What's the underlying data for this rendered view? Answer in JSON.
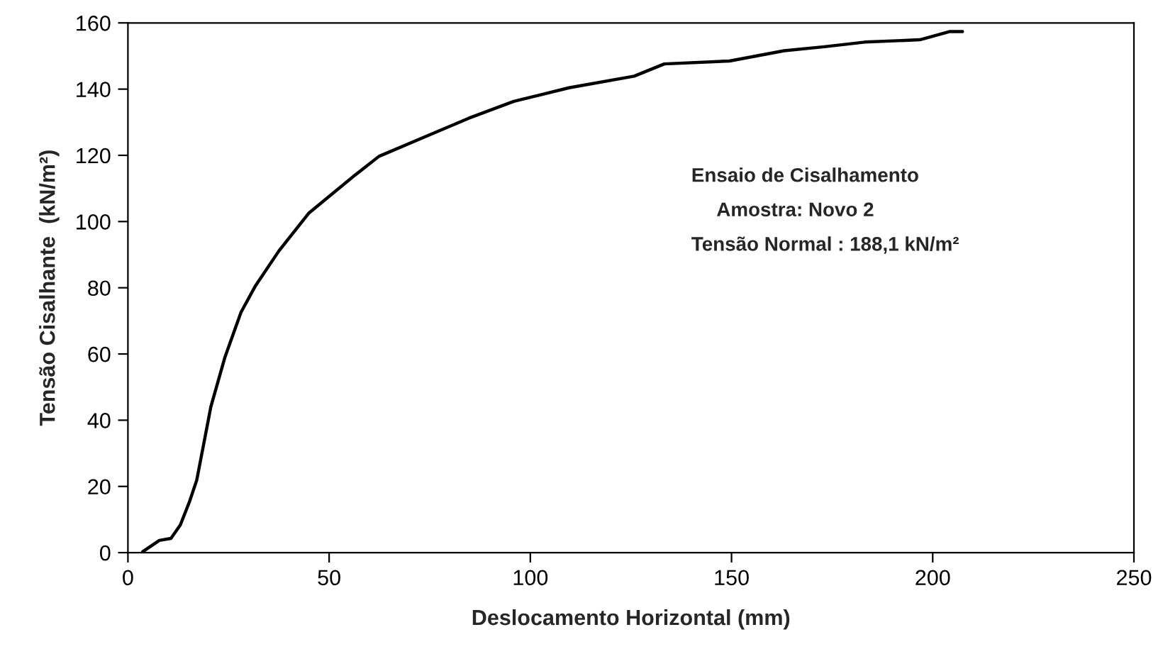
{
  "chart_data": {
    "type": "line",
    "xlabel": "Deslocamento Horizontal (mm)",
    "ylabel": "Tensão Cisalhante  (kN/m²)",
    "annotations": [
      "Ensaio de Cisalhamento",
      "Amostra: Novo 2",
      "Tensão Normal : 188,1 kN/m²"
    ],
    "series": [
      {
        "color": "#000000",
        "x": [
          3.7,
          7.8,
          10.7,
          13,
          15.3,
          17.1,
          18.8,
          20.6,
          24.1,
          28.1,
          31.6,
          37.5,
          45,
          56,
          62.4,
          74.8,
          84.7,
          95.9,
          109.6,
          125.8,
          133.3,
          149.5,
          163.1,
          173.1,
          183.1,
          196.8,
          204.3,
          207.4
        ],
        "values": [
          0.3,
          3.7,
          4.3,
          8.3,
          15.4,
          21.9,
          32.6,
          44,
          59,
          72.6,
          80.4,
          91.1,
          102.6,
          113.6,
          119.7,
          126.1,
          131.2,
          136.3,
          140.4,
          143.9,
          147.6,
          148.5,
          151.6,
          152.8,
          154.2,
          154.9,
          157.4,
          157.4
        ]
      }
    ],
    "xlim": [
      0,
      250
    ],
    "ylim": [
      0,
      160
    ],
    "xticks": [
      0,
      50,
      100,
      150,
      200,
      250
    ],
    "yticks": [
      0,
      20,
      40,
      60,
      80,
      100,
      120,
      140,
      160
    ],
    "grid": false,
    "marker": "none",
    "line_style": "solid"
  }
}
